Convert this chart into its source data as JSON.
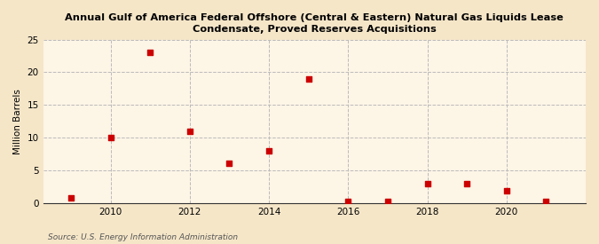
{
  "title": "Annual Gulf of America Federal Offshore (Central & Eastern) Natural Gas Liquids Lease\nCondensate, Proved Reserves Acquisitions",
  "ylabel": "Million Barrels",
  "source": "Source: U.S. Energy Information Administration",
  "background_color": "#f5e6c8",
  "plot_background_color": "#fdf5e6",
  "marker_color": "#cc0000",
  "years": [
    2009,
    2010,
    2011,
    2012,
    2013,
    2014,
    2015,
    2016,
    2017,
    2018,
    2019,
    2020,
    2021
  ],
  "values": [
    0.8,
    10.0,
    23.0,
    11.0,
    6.0,
    8.0,
    19.0,
    0.2,
    0.2,
    3.0,
    3.0,
    1.8,
    0.2
  ],
  "ylim": [
    0,
    25
  ],
  "yticks": [
    0,
    5,
    10,
    15,
    20,
    25
  ],
  "xlim": [
    2008.3,
    2022.0
  ],
  "xticks": [
    2010,
    2012,
    2014,
    2016,
    2018,
    2020
  ]
}
